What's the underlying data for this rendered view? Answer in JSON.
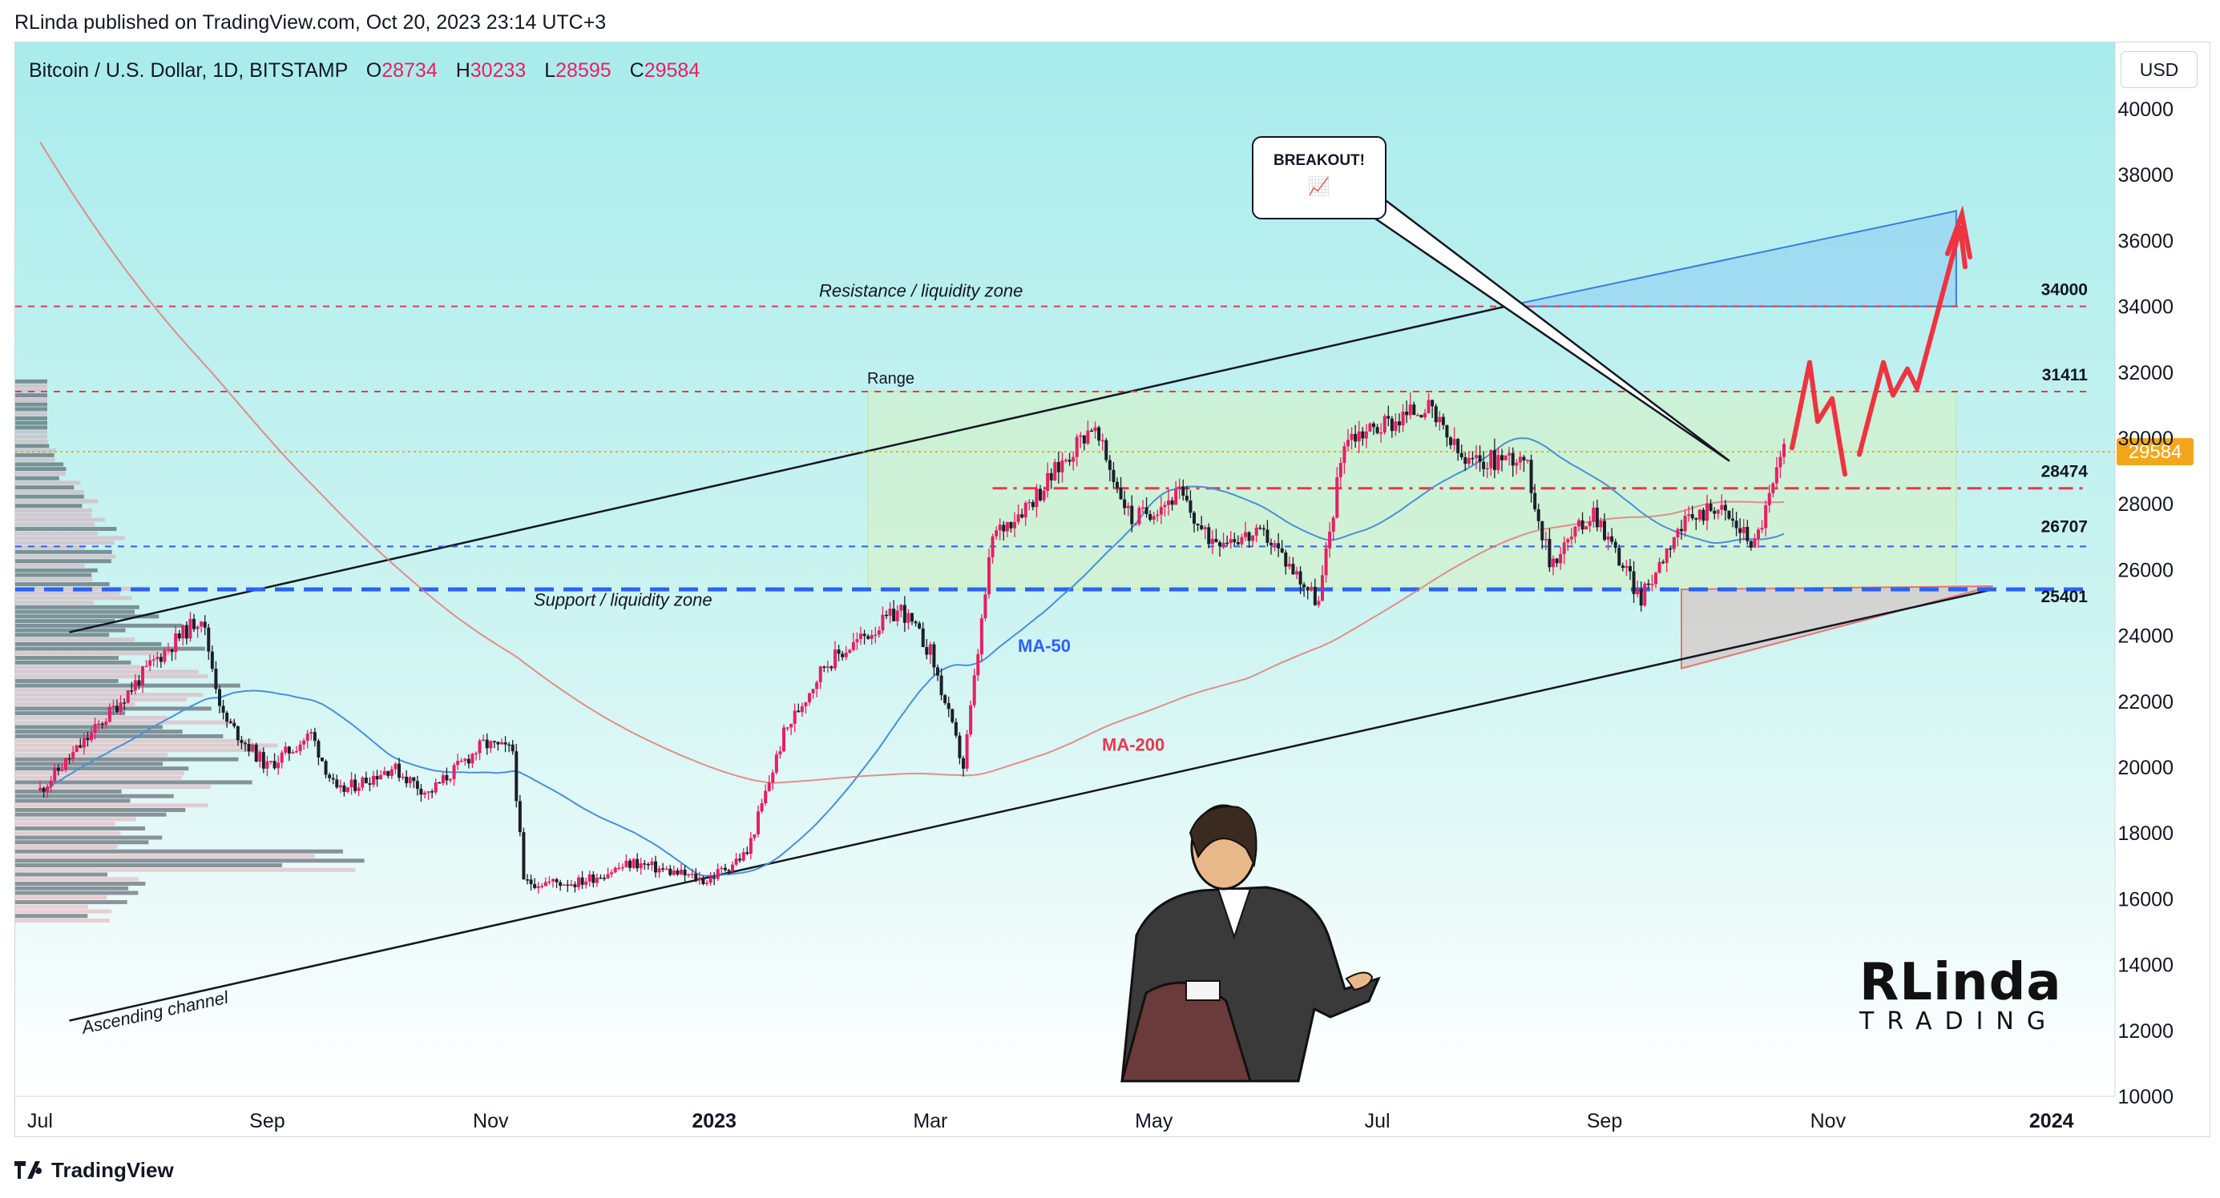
{
  "header": {
    "published": "RLinda published on TradingView.com, Oct 20, 2023 23:14 UTC+3"
  },
  "legend": {
    "symbol": "Bitcoin / U.S. Dollar, 1D, BITSTAMP",
    "o_label": "O",
    "o_value": "28734",
    "h_label": "H",
    "h_value": "30233",
    "l_label": "L",
    "l_value": "28595",
    "c_label": "C",
    "c_value": "29584"
  },
  "currency_button": "USD",
  "callout": {
    "title": "BREAKOUT!",
    "emoji": "📈"
  },
  "footer": {
    "brand": "TradingView"
  },
  "watermark": {
    "line1": "RLinda",
    "line2": "TRADING"
  },
  "colors": {
    "bullish": "#e91e63",
    "bearish": "#1b1f2a",
    "ma50": "#4a8fd8",
    "ma200": "#e57373",
    "support": "#2962ff",
    "resistance": "#e53950",
    "forecast": "#ef3340"
  },
  "chart_data": {
    "type": "candlestick",
    "symbol": "BTCUSD",
    "timeframe": "1D",
    "x_tick_labels": [
      "Jul",
      "Sep",
      "Nov",
      "2023",
      "Mar",
      "May",
      "Jul",
      "Sep",
      "Nov",
      "2024"
    ],
    "y_tick_labels": [
      "10000",
      "12000",
      "14000",
      "16000",
      "18000",
      "20000",
      "22000",
      "24000",
      "26000",
      "28000",
      "30000",
      "32000",
      "34000",
      "36000",
      "38000",
      "40000"
    ],
    "ylim": [
      10000,
      41000
    ],
    "grid": false,
    "last_price": 29584,
    "price_path_monthly": [
      {
        "date": "2022-07-01",
        "price": 19300
      },
      {
        "date": "2022-07-15",
        "price": 21000
      },
      {
        "date": "2022-08-01",
        "price": 23200
      },
      {
        "date": "2022-08-14",
        "price": 24600
      },
      {
        "date": "2022-08-20",
        "price": 21500
      },
      {
        "date": "2022-09-01",
        "price": 20000
      },
      {
        "date": "2022-09-13",
        "price": 21000
      },
      {
        "date": "2022-09-20",
        "price": 19200
      },
      {
        "date": "2022-10-05",
        "price": 20000
      },
      {
        "date": "2022-10-15",
        "price": 19200
      },
      {
        "date": "2022-10-30",
        "price": 20700
      },
      {
        "date": "2022-11-07",
        "price": 20500
      },
      {
        "date": "2022-11-10",
        "price": 16500
      },
      {
        "date": "2022-11-25",
        "price": 16500
      },
      {
        "date": "2022-12-10",
        "price": 17100
      },
      {
        "date": "2022-12-30",
        "price": 16550
      },
      {
        "date": "2023-01-10",
        "price": 17400
      },
      {
        "date": "2023-01-20",
        "price": 21000
      },
      {
        "date": "2023-01-31",
        "price": 23100
      },
      {
        "date": "2023-02-15",
        "price": 24300
      },
      {
        "date": "2023-02-21",
        "price": 24800
      },
      {
        "date": "2023-03-01",
        "price": 23500
      },
      {
        "date": "2023-03-10",
        "price": 20000
      },
      {
        "date": "2023-03-18",
        "price": 27000
      },
      {
        "date": "2023-03-31",
        "price": 28400
      },
      {
        "date": "2023-04-14",
        "price": 30400
      },
      {
        "date": "2023-04-25",
        "price": 27500
      },
      {
        "date": "2023-05-08",
        "price": 28300
      },
      {
        "date": "2023-05-15",
        "price": 27000
      },
      {
        "date": "2023-06-01",
        "price": 27000
      },
      {
        "date": "2023-06-15",
        "price": 25000
      },
      {
        "date": "2023-06-22",
        "price": 30000
      },
      {
        "date": "2023-07-05",
        "price": 30500
      },
      {
        "date": "2023-07-14",
        "price": 31000
      },
      {
        "date": "2023-07-25",
        "price": 29200
      },
      {
        "date": "2023-08-10",
        "price": 29500
      },
      {
        "date": "2023-08-17",
        "price": 26200
      },
      {
        "date": "2023-08-29",
        "price": 27800
      },
      {
        "date": "2023-09-11",
        "price": 25100
      },
      {
        "date": "2023-09-20",
        "price": 27100
      },
      {
        "date": "2023-10-01",
        "price": 28000
      },
      {
        "date": "2023-10-12",
        "price": 26800
      },
      {
        "date": "2023-10-20",
        "price": 29584
      }
    ],
    "ma50_label": "MA-50",
    "ma200_label": "MA-200",
    "levels": [
      {
        "label": "34000",
        "value": 34000,
        "style": "red-dashed"
      },
      {
        "label": "31411",
        "value": 31411,
        "style": "red-dashed"
      },
      {
        "label": "28474",
        "value": 28474,
        "style": "red-dashdot"
      },
      {
        "label": "26707",
        "value": 26707,
        "style": "blue-dashed"
      },
      {
        "label": "25401",
        "value": 25401,
        "style": "blue-thick-dashed"
      }
    ],
    "annotations": [
      {
        "text": "Resistance / liquidity zone"
      },
      {
        "text": "Support / liquidity zone"
      },
      {
        "text": "Range"
      },
      {
        "text": "Ascending channel"
      }
    ]
  }
}
